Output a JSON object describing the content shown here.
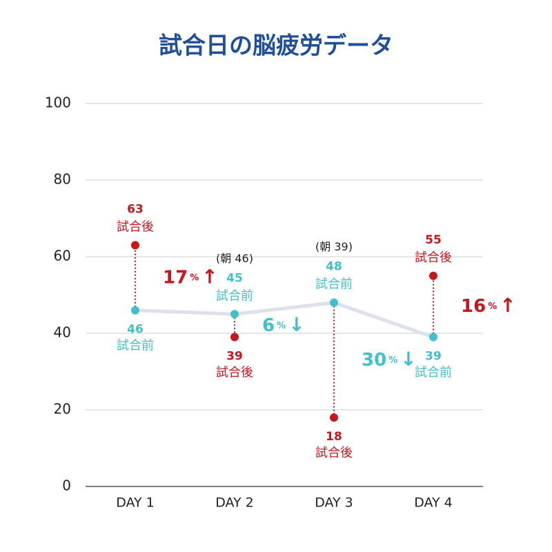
{
  "chart_data": {
    "type": "line",
    "title": "試合日の脳疲労データ",
    "categories": [
      "DAY 1",
      "DAY 2",
      "DAY 3",
      "DAY 4"
    ],
    "series": [
      {
        "name": "試合前",
        "color": "#3ec1c9",
        "values": [
          46,
          45,
          48,
          39
        ]
      },
      {
        "name": "試合後",
        "color": "#c8161d",
        "values": [
          63,
          39,
          18,
          55
        ]
      }
    ],
    "line_color": "#dde1ee",
    "morning_notes": [
      null,
      "(朝 46)",
      "(朝 39)",
      null
    ],
    "changes": {
      "values": [
        17,
        6,
        30,
        16
      ],
      "arrows": [
        "↑",
        "↓",
        "↓",
        "↑"
      ],
      "unit": "%",
      "colors": [
        "#c8161d",
        "#3ec1c9",
        "#3ec1c9",
        "#c8161d"
      ]
    },
    "ylim": [
      0,
      100
    ],
    "yticks": [
      0,
      20,
      40,
      60,
      80,
      100
    ],
    "grid": true
  }
}
